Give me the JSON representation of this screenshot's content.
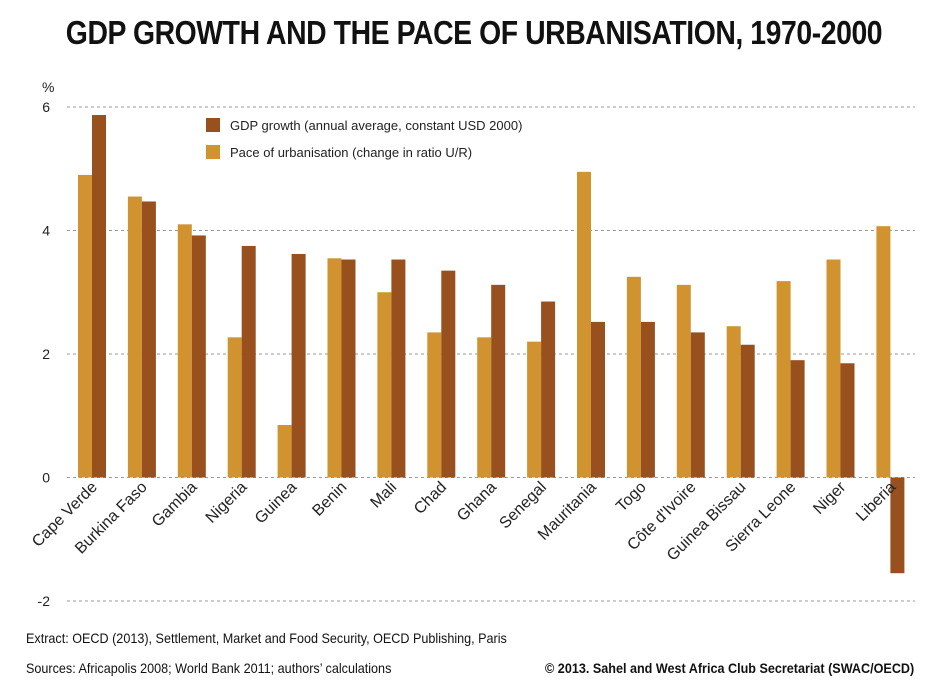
{
  "title": "GDP GROWTH AND THE PACE OF URBANISATION, 1970-2000",
  "footer": {
    "extract": "Extract: OECD (2013), Settlement, Market and Food Security, OECD Publishing, Paris",
    "sources": "Sources: Africapolis 2008; World Bank 2011; authors’ calculations",
    "copyright": "© 2013. Sahel and West Africa Club Secretariat (SWAC/OECD)"
  },
  "chart_data": {
    "type": "bar",
    "ylabel": "%",
    "ylim": [
      -2,
      6
    ],
    "yticks": [
      -2,
      0,
      2,
      4,
      6
    ],
    "grid": "dashed horizontal",
    "legend_position": "top-center",
    "categories": [
      "Cape Verde",
      "Burkina Faso",
      "Gambia",
      "Nigeria",
      "Guinea",
      "Benin",
      "Mali",
      "Chad",
      "Ghana",
      "Senegal",
      "Mauritania",
      "Togo",
      "Côte d'Ivoire",
      "Guinea Bissau",
      "Sierra Leone",
      "Niger",
      "Liberia"
    ],
    "series": [
      {
        "name": "Pace of urbanisation (change in ratio U/R)",
        "color": "#D1932F",
        "values": [
          4.9,
          4.55,
          4.1,
          2.27,
          0.85,
          3.55,
          3.0,
          2.35,
          2.27,
          2.2,
          4.95,
          3.25,
          3.12,
          2.45,
          3.18,
          3.53,
          4.07
        ]
      },
      {
        "name": "GDP growth (annual average, constant USD 2000)",
        "color": "#98501F",
        "values": [
          5.87,
          4.47,
          3.92,
          3.75,
          3.62,
          3.53,
          3.53,
          3.35,
          3.12,
          2.85,
          2.52,
          2.52,
          2.35,
          2.15,
          1.9,
          1.85,
          -1.55
        ]
      }
    ]
  }
}
